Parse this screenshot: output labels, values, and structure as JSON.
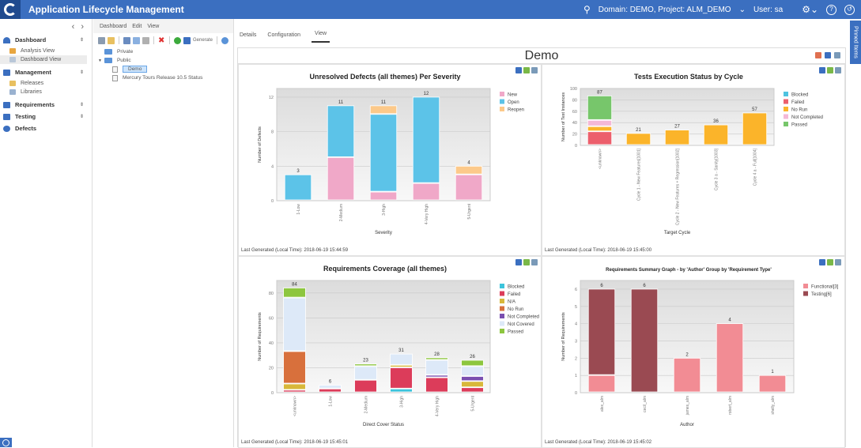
{
  "header": {
    "app_title": "Application Lifecycle Management",
    "domain_project": "Domain: DEMO, Project: ALM_DEMO",
    "user": "User: sa",
    "search_icon": "search-icon",
    "settings_icon": "gear-icon",
    "help_icon": "help-icon",
    "logout_icon": "logout-icon"
  },
  "sidebar": {
    "groups": [
      {
        "label": "Dashboard",
        "icon": "gauge-icon",
        "items": [
          {
            "label": "Analysis View",
            "icon": "chart-icon"
          },
          {
            "label": "Dashboard View",
            "icon": "dashboard-icon",
            "selected": true
          }
        ]
      },
      {
        "label": "Management",
        "icon": "management-icon",
        "items": [
          {
            "label": "Releases",
            "icon": "releases-icon"
          },
          {
            "label": "Libraries",
            "icon": "libraries-icon"
          }
        ]
      },
      {
        "label": "Requirements",
        "icon": "requirements-icon",
        "items": []
      },
      {
        "label": "Testing",
        "icon": "testing-icon",
        "items": []
      },
      {
        "label": "Defects",
        "icon": "defects-icon",
        "items": []
      }
    ]
  },
  "tree_panel": {
    "menu": [
      "Dashboard",
      "Edit",
      "View"
    ],
    "toolbar_generate": "Generate",
    "tree": {
      "private": "Private",
      "public": "Public",
      "children": [
        "Demo",
        "Mercury Tours Release 10.5 Status"
      ],
      "selected": "Demo"
    }
  },
  "main": {
    "tabs": [
      {
        "label": "Details"
      },
      {
        "label": "Configuration"
      },
      {
        "label": "View",
        "active": true
      }
    ],
    "dashboard_title": "Demo",
    "pinned_items": "Pinned Items"
  },
  "chart_data": [
    {
      "type": "bar",
      "stacked": true,
      "title": "Unresolved Defects (all themes) Per Severity",
      "xlabel": "Severity",
      "ylabel": "Number of Defects",
      "ylim": [
        0,
        13
      ],
      "yticks": [
        0,
        4,
        8,
        12
      ],
      "categories": [
        "1-Low",
        "2-Medium",
        "3-High",
        "4-Very High",
        "5-Urgent"
      ],
      "totals": [
        3,
        11,
        11,
        12,
        4
      ],
      "series": [
        {
          "name": "New",
          "color": "#f0a8c8",
          "values": [
            0,
            5,
            1,
            2,
            3
          ]
        },
        {
          "name": "Open",
          "color": "#5cc3e8",
          "values": [
            3,
            6,
            9,
            10,
            0
          ]
        },
        {
          "name": "Reopen",
          "color": "#fcc98a",
          "values": [
            0,
            0,
            1,
            0,
            1
          ]
        }
      ],
      "legend": "right",
      "grid": true,
      "last_generated": "Last Generated (Local Time): 2018-06-19 15:44:59"
    },
    {
      "type": "bar",
      "stacked": true,
      "title": "Tests Execution Status by Cycle",
      "xlabel": "Target Cycle",
      "ylabel": "Number of Test Instances",
      "ylim": [
        0,
        100
      ],
      "yticks": [
        0,
        20,
        40,
        60,
        80,
        100
      ],
      "categories": [
        "<unknown>",
        "Cycle 1 - New Features[1001]",
        "Cycle 2 - New Features + Regression[1002]",
        "Cycle 3 a - Sanity[1003]",
        "Cycle 4 a - Full[1004]"
      ],
      "totals": [
        87,
        21,
        27,
        36,
        57
      ],
      "series": [
        {
          "name": "Blocked",
          "color": "#4fc3e0",
          "values": [
            0,
            0,
            0,
            0,
            0
          ]
        },
        {
          "name": "Failed",
          "color": "#ec5f6c",
          "values": [
            24,
            0,
            0,
            0,
            0
          ]
        },
        {
          "name": "No Run",
          "color": "#fbb42a",
          "values": [
            9,
            21,
            27,
            36,
            57
          ]
        },
        {
          "name": "Not Completed",
          "color": "#f4b8d6",
          "values": [
            11,
            0,
            0,
            0,
            0
          ]
        },
        {
          "name": "Passed",
          "color": "#77c66b",
          "values": [
            43,
            0,
            0,
            0,
            0
          ]
        }
      ],
      "legend": "right",
      "grid": true,
      "last_generated": "Last Generated (Local Time): 2018-06-19 15:45:00"
    },
    {
      "type": "bar",
      "stacked": true,
      "title": "Requirements Coverage (all themes)",
      "xlabel": "Direct Cover Status",
      "ylabel": "Number of Requirements",
      "ylim": [
        0,
        90
      ],
      "yticks": [
        0,
        20,
        40,
        60,
        80
      ],
      "categories": [
        "<unknown>",
        "1-Low",
        "2-Medium",
        "3-High",
        "4-Very High",
        "5-Urgent"
      ],
      "totals": [
        84,
        6,
        23,
        31,
        28,
        26
      ],
      "series": [
        {
          "name": "Blocked",
          "color": "#3cc4dc",
          "values": [
            0,
            0,
            0,
            3,
            0,
            0
          ]
        },
        {
          "name": "Failed",
          "color": "#dc3c5a",
          "values": [
            2,
            3,
            10,
            17,
            12,
            4
          ]
        },
        {
          "name": "N/A",
          "color": "#d8b83a",
          "values": [
            5,
            0,
            0,
            2,
            0,
            5
          ]
        },
        {
          "name": "No Run",
          "color": "#d8703c",
          "values": [
            26,
            0,
            0,
            0,
            0,
            0
          ]
        },
        {
          "name": "Not Completed",
          "color": "#7a4fb0",
          "values": [
            0,
            0,
            0,
            0,
            2,
            4
          ]
        },
        {
          "name": "Not Covered",
          "color": "#dde9f8",
          "values": [
            43,
            3,
            11,
            9,
            12,
            8
          ]
        },
        {
          "name": "Passed",
          "color": "#8dc63f",
          "values": [
            8,
            0,
            2,
            0,
            2,
            5
          ]
        }
      ],
      "legend": "right",
      "grid": true,
      "last_generated": "Last Generated (Local Time): 2018-06-19 15:45:01"
    },
    {
      "type": "bar",
      "stacked": true,
      "title": "Requirements Summary Graph - by 'Author' Group by 'Requirement Type'",
      "xlabel": "Author",
      "ylabel": "Number of Requirements",
      "ylim": [
        0,
        6.5
      ],
      "yticks": [
        0,
        1,
        2,
        3,
        4,
        5,
        6
      ],
      "categories": [
        "alex_alm",
        "cecil_alm",
        "james_alm",
        "robert_alm",
        "shelly_alm"
      ],
      "totals": [
        6,
        6,
        2,
        4,
        1
      ],
      "series": [
        {
          "name": "Functional[3]",
          "color": "#f28c94",
          "values": [
            1,
            0,
            2,
            4,
            1
          ]
        },
        {
          "name": "Testing[6]",
          "color": "#9a4a52",
          "values": [
            5,
            6,
            0,
            0,
            0
          ]
        }
      ],
      "legend": "right",
      "grid": true,
      "last_generated": "Last Generated (Local Time): 2018-06-19 15:45:02"
    }
  ]
}
